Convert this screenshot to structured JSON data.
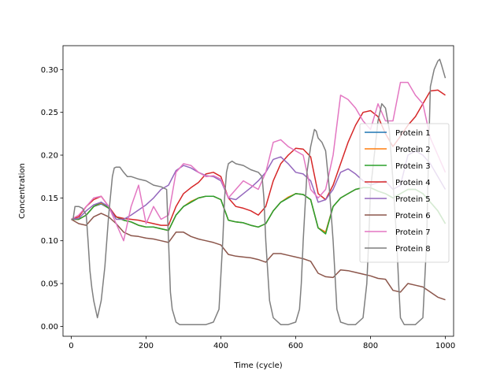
{
  "chart_data": {
    "type": "line",
    "title": "",
    "xlabel": "Time (cycle)",
    "ylabel": "Concentration",
    "xlim": [
      -22,
      1022
    ],
    "ylim": [
      -0.0116,
      0.3279
    ],
    "xticks": [
      0,
      200,
      400,
      600,
      800,
      1000
    ],
    "yticks": [
      0.0,
      0.05,
      0.1,
      0.15,
      0.2,
      0.25,
      0.3
    ],
    "xtick_labels": [
      "0",
      "200",
      "400",
      "600",
      "800",
      "1000"
    ],
    "ytick_labels": [
      "0.00",
      "0.05",
      "0.10",
      "0.15",
      "0.20",
      "0.25",
      "0.30"
    ],
    "grid": false,
    "legend_position": "center-right",
    "series": [
      {
        "name": "Protein 1",
        "color": "#1f77b4",
        "x": [
          0,
          20,
          40,
          60,
          80,
          100,
          120,
          140,
          160,
          180,
          200,
          220,
          240,
          260,
          280,
          300,
          320,
          340,
          360,
          380,
          400,
          420,
          440,
          460,
          480,
          500,
          520,
          540,
          560,
          580,
          600,
          620,
          640,
          660,
          680,
          700,
          720,
          740,
          760,
          780,
          800,
          820,
          840,
          860,
          880,
          900,
          920,
          940,
          960,
          980,
          1000
        ],
        "y": [
          0.125,
          0.125,
          0.13,
          0.14,
          0.143,
          0.138,
          0.128,
          0.124,
          0.122,
          0.118,
          0.116,
          0.116,
          0.114,
          0.112,
          0.13,
          0.14,
          0.145,
          0.15,
          0.152,
          0.152,
          0.148,
          0.124,
          0.122,
          0.121,
          0.118,
          0.116,
          0.12,
          0.135,
          0.145,
          0.15,
          0.155,
          0.154,
          0.148,
          0.115,
          0.11,
          0.14,
          0.15,
          0.155,
          0.16,
          0.162,
          0.162,
          0.158,
          0.155,
          0.15,
          0.155,
          0.16,
          0.16,
          0.155,
          0.145,
          0.135,
          0.12
        ]
      },
      {
        "name": "Protein 2",
        "color": "#ff7f0e",
        "x": [
          0,
          20,
          40,
          60,
          80,
          100,
          120,
          140,
          160,
          180,
          200,
          220,
          240,
          260,
          280,
          300,
          320,
          340,
          360,
          380,
          400,
          420,
          440,
          460,
          480,
          500,
          520,
          540,
          560,
          580,
          600,
          620,
          640,
          660,
          680,
          700,
          720,
          740,
          760,
          780,
          800,
          820,
          840,
          860,
          880,
          900,
          920,
          940,
          960,
          980,
          1000
        ],
        "y": [
          0.125,
          0.125,
          0.13,
          0.14,
          0.144,
          0.138,
          0.128,
          0.124,
          0.122,
          0.118,
          0.116,
          0.116,
          0.114,
          0.112,
          0.13,
          0.14,
          0.146,
          0.15,
          0.152,
          0.152,
          0.148,
          0.124,
          0.122,
          0.121,
          0.118,
          0.116,
          0.12,
          0.135,
          0.145,
          0.151,
          0.155,
          0.154,
          0.148,
          0.115,
          0.11,
          0.14,
          0.15,
          0.155,
          0.16,
          0.162,
          0.162,
          0.158,
          0.155,
          0.15,
          0.155,
          0.16,
          0.16,
          0.155,
          0.145,
          0.135,
          0.12
        ]
      },
      {
        "name": "Protein 3",
        "color": "#2ca02c",
        "x": [
          0,
          20,
          40,
          60,
          80,
          100,
          120,
          140,
          160,
          180,
          200,
          220,
          240,
          260,
          280,
          300,
          320,
          340,
          360,
          380,
          400,
          420,
          440,
          460,
          480,
          500,
          520,
          540,
          560,
          580,
          600,
          620,
          640,
          660,
          680,
          700,
          720,
          740,
          760,
          780,
          800,
          820,
          840,
          860,
          880,
          900,
          920,
          940,
          960,
          980,
          1000
        ],
        "y": [
          0.125,
          0.125,
          0.13,
          0.14,
          0.145,
          0.138,
          0.128,
          0.124,
          0.122,
          0.118,
          0.116,
          0.116,
          0.114,
          0.112,
          0.13,
          0.14,
          0.145,
          0.15,
          0.152,
          0.152,
          0.148,
          0.124,
          0.122,
          0.121,
          0.118,
          0.116,
          0.12,
          0.135,
          0.145,
          0.15,
          0.155,
          0.154,
          0.148,
          0.115,
          0.108,
          0.14,
          0.15,
          0.155,
          0.16,
          0.162,
          0.162,
          0.158,
          0.155,
          0.15,
          0.155,
          0.16,
          0.16,
          0.155,
          0.145,
          0.135,
          0.12
        ]
      },
      {
        "name": "Protein 4",
        "color": "#d62728",
        "x": [
          0,
          20,
          40,
          60,
          80,
          100,
          120,
          140,
          160,
          180,
          200,
          220,
          240,
          260,
          280,
          300,
          320,
          340,
          360,
          380,
          400,
          420,
          440,
          460,
          480,
          500,
          520,
          540,
          560,
          580,
          600,
          620,
          640,
          660,
          680,
          700,
          720,
          740,
          760,
          780,
          800,
          820,
          840,
          860,
          880,
          900,
          920,
          940,
          960,
          980,
          1000
        ],
        "y": [
          0.125,
          0.128,
          0.14,
          0.148,
          0.152,
          0.14,
          0.128,
          0.126,
          0.125,
          0.124,
          0.122,
          0.12,
          0.118,
          0.118,
          0.14,
          0.155,
          0.162,
          0.168,
          0.178,
          0.18,
          0.175,
          0.15,
          0.14,
          0.138,
          0.135,
          0.13,
          0.14,
          0.17,
          0.19,
          0.2,
          0.208,
          0.207,
          0.198,
          0.155,
          0.148,
          0.165,
          0.19,
          0.215,
          0.235,
          0.25,
          0.252,
          0.245,
          0.225,
          0.21,
          0.222,
          0.235,
          0.245,
          0.26,
          0.275,
          0.276,
          0.27
        ]
      },
      {
        "name": "Protein 5",
        "color": "#9467bd",
        "x": [
          0,
          20,
          40,
          60,
          80,
          100,
          120,
          140,
          160,
          180,
          200,
          220,
          240,
          260,
          280,
          300,
          320,
          340,
          360,
          380,
          400,
          420,
          440,
          460,
          480,
          500,
          520,
          540,
          560,
          580,
          600,
          620,
          640,
          660,
          680,
          700,
          720,
          740,
          760,
          780,
          800,
          820,
          840,
          860,
          880,
          900,
          920,
          940,
          960,
          980,
          1000
        ],
        "y": [
          0.125,
          0.126,
          0.135,
          0.142,
          0.145,
          0.14,
          0.125,
          0.125,
          0.13,
          0.136,
          0.142,
          0.15,
          0.16,
          0.165,
          0.182,
          0.188,
          0.185,
          0.18,
          0.176,
          0.175,
          0.17,
          0.15,
          0.148,
          0.155,
          0.162,
          0.17,
          0.18,
          0.195,
          0.198,
          0.19,
          0.18,
          0.178,
          0.17,
          0.145,
          0.148,
          0.16,
          0.18,
          0.184,
          0.178,
          0.17,
          0.165,
          0.168,
          0.17,
          0.16,
          0.165,
          0.2,
          0.205,
          0.2,
          0.19,
          0.175,
          0.16
        ]
      },
      {
        "name": "Protein 6",
        "color": "#8c564b",
        "x": [
          0,
          20,
          40,
          60,
          80,
          100,
          120,
          140,
          160,
          180,
          200,
          220,
          240,
          260,
          280,
          300,
          320,
          340,
          360,
          380,
          400,
          420,
          440,
          460,
          480,
          500,
          520,
          540,
          560,
          580,
          600,
          620,
          640,
          660,
          680,
          700,
          720,
          740,
          760,
          780,
          800,
          820,
          840,
          860,
          880,
          900,
          920,
          940,
          960,
          980,
          1000
        ],
        "y": [
          0.125,
          0.12,
          0.118,
          0.128,
          0.132,
          0.128,
          0.12,
          0.11,
          0.106,
          0.105,
          0.103,
          0.102,
          0.1,
          0.098,
          0.11,
          0.11,
          0.105,
          0.102,
          0.1,
          0.098,
          0.095,
          0.084,
          0.082,
          0.081,
          0.08,
          0.078,
          0.075,
          0.085,
          0.085,
          0.083,
          0.081,
          0.079,
          0.076,
          0.062,
          0.058,
          0.057,
          0.066,
          0.065,
          0.063,
          0.061,
          0.059,
          0.056,
          0.055,
          0.042,
          0.04,
          0.05,
          0.048,
          0.046,
          0.04,
          0.034,
          0.031
        ]
      },
      {
        "name": "Protein 7",
        "color": "#e377c2",
        "x": [
          0,
          20,
          40,
          60,
          80,
          100,
          120,
          140,
          160,
          180,
          200,
          220,
          240,
          260,
          280,
          300,
          320,
          340,
          360,
          380,
          400,
          420,
          440,
          460,
          480,
          500,
          520,
          540,
          560,
          580,
          600,
          620,
          640,
          660,
          680,
          700,
          720,
          740,
          760,
          780,
          800,
          820,
          840,
          860,
          880,
          900,
          920,
          940,
          960,
          980,
          1000
        ],
        "y": [
          0.125,
          0.13,
          0.14,
          0.15,
          0.152,
          0.14,
          0.12,
          0.1,
          0.14,
          0.165,
          0.12,
          0.14,
          0.125,
          0.13,
          0.18,
          0.19,
          0.188,
          0.18,
          0.175,
          0.176,
          0.172,
          0.15,
          0.16,
          0.17,
          0.165,
          0.16,
          0.18,
          0.215,
          0.218,
          0.21,
          0.205,
          0.2,
          0.16,
          0.15,
          0.16,
          0.2,
          0.27,
          0.265,
          0.255,
          0.24,
          0.23,
          0.26,
          0.24,
          0.24,
          0.285,
          0.285,
          0.27,
          0.26,
          0.22,
          0.2,
          0.18
        ]
      },
      {
        "name": "Protein 8",
        "color": "#7f7f7f",
        "x": [
          0,
          5,
          10,
          20,
          30,
          40,
          45,
          50,
          55,
          60,
          70,
          80,
          90,
          100,
          110,
          115,
          120,
          130,
          140,
          150,
          160,
          180,
          200,
          220,
          240,
          255,
          260,
          265,
          270,
          280,
          290,
          300,
          320,
          340,
          360,
          380,
          395,
          405,
          410,
          415,
          420,
          430,
          440,
          460,
          480,
          500,
          510,
          515,
          520,
          530,
          540,
          560,
          580,
          600,
          610,
          615,
          620,
          630,
          640,
          650,
          655,
          660,
          670,
          680,
          690,
          700,
          710,
          720,
          740,
          760,
          780,
          790,
          795,
          800,
          810,
          820,
          830,
          840,
          850,
          860,
          870,
          875,
          880,
          890,
          900,
          920,
          940,
          950,
          955,
          960,
          970,
          980,
          985,
          990,
          1000
        ],
        "y": [
          0.125,
          0.125,
          0.14,
          0.14,
          0.138,
          0.13,
          0.1,
          0.065,
          0.045,
          0.03,
          0.01,
          0.03,
          0.07,
          0.13,
          0.175,
          0.185,
          0.186,
          0.186,
          0.18,
          0.175,
          0.175,
          0.172,
          0.17,
          0.165,
          0.163,
          0.16,
          0.1,
          0.04,
          0.02,
          0.005,
          0.002,
          0.002,
          0.002,
          0.002,
          0.002,
          0.005,
          0.02,
          0.1,
          0.15,
          0.18,
          0.19,
          0.193,
          0.19,
          0.188,
          0.183,
          0.18,
          0.175,
          0.15,
          0.1,
          0.03,
          0.01,
          0.002,
          0.002,
          0.005,
          0.02,
          0.05,
          0.1,
          0.18,
          0.21,
          0.23,
          0.228,
          0.22,
          0.215,
          0.205,
          0.16,
          0.1,
          0.02,
          0.005,
          0.002,
          0.002,
          0.01,
          0.05,
          0.1,
          0.16,
          0.2,
          0.24,
          0.26,
          0.255,
          0.23,
          0.17,
          0.1,
          0.05,
          0.01,
          0.002,
          0.002,
          0.002,
          0.01,
          0.1,
          0.2,
          0.28,
          0.3,
          0.31,
          0.312,
          0.305,
          0.29
        ]
      }
    ]
  }
}
